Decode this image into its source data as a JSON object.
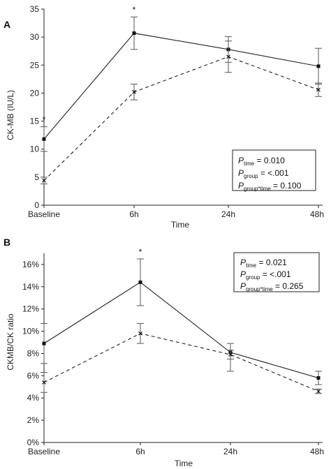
{
  "chart_data": [
    {
      "type": "line",
      "panel": "A",
      "xlabel": "Time",
      "ylabel": "CK-MB (IU/L)",
      "categories": [
        "Baseline",
        "6h",
        "24h",
        "48h"
      ],
      "ylim": [
        0,
        35
      ],
      "yticks": [
        {
          "v": 0,
          "label": "0"
        },
        {
          "v": 5,
          "label": "5"
        },
        {
          "v": 10,
          "label": "10"
        },
        {
          "v": 15,
          "label": "15"
        },
        {
          "v": 20,
          "label": "20"
        },
        {
          "v": 25,
          "label": "25"
        },
        {
          "v": 30,
          "label": "30"
        },
        {
          "v": 35,
          "label": "35"
        }
      ],
      "series": [
        {
          "style": "solid",
          "marker": "square",
          "values": [
            11.8,
            30.7,
            27.8,
            24.8
          ],
          "errors": [
            [
              9.6,
              14.0
            ],
            [
              27.8,
              33.6
            ],
            [
              25.5,
              30.1
            ],
            [
              21.6,
              28.0
            ]
          ]
        },
        {
          "style": "dashed",
          "marker": "x",
          "values": [
            4.4,
            20.2,
            26.5,
            20.6
          ],
          "errors": [
            [
              3.8,
              5.0
            ],
            [
              18.8,
              21.6
            ],
            [
              23.7,
              29.3
            ],
            [
              19.4,
              21.8
            ]
          ]
        }
      ],
      "significance": [
        {
          "index": 0,
          "label": "*"
        },
        {
          "index": 1,
          "label": "*"
        }
      ],
      "stats": [
        {
          "symbol": "P",
          "sub": "time",
          "text": " = 0.010"
        },
        {
          "symbol": "P",
          "sub": "group",
          "text": " = <.001"
        },
        {
          "symbol": "P",
          "sub": "group*time",
          "text": " = 0.100"
        }
      ]
    },
    {
      "type": "line",
      "panel": "B",
      "xlabel": "Time",
      "ylabel": "CKMB/CK ratio",
      "categories": [
        "Baseline",
        "6h",
        "24h",
        "48h"
      ],
      "ylim": [
        0,
        17
      ],
      "yticks": [
        {
          "v": 0,
          "label": "0%"
        },
        {
          "v": 2,
          "label": "2%"
        },
        {
          "v": 4,
          "label": "4%"
        },
        {
          "v": 6,
          "label": "6%"
        },
        {
          "v": 8,
          "label": "8%"
        },
        {
          "v": 10,
          "label": "10%"
        },
        {
          "v": 12,
          "label": "12%"
        },
        {
          "v": 14,
          "label": "14%"
        },
        {
          "v": 16,
          "label": "16%"
        }
      ],
      "series": [
        {
          "style": "solid",
          "marker": "square",
          "values": [
            8.9,
            14.4,
            8.1,
            5.8
          ],
          "errors": [
            [
              7.1,
              10.7
            ],
            [
              12.3,
              16.5
            ],
            [
              6.4,
              8.9
            ],
            [
              5.2,
              6.4
            ]
          ]
        },
        {
          "style": "dashed",
          "marker": "x",
          "values": [
            5.4,
            9.8,
            7.9,
            4.6
          ],
          "errors": [
            [
              4.5,
              6.3
            ],
            [
              8.9,
              10.7
            ],
            [
              7.5,
              8.3
            ],
            [
              4.4,
              4.8
            ]
          ]
        }
      ],
      "significance": [
        {
          "index": 1,
          "label": "*"
        }
      ],
      "stats": [
        {
          "symbol": "P",
          "sub": "time",
          "text": " = 0.021"
        },
        {
          "symbol": "P",
          "sub": "group",
          "text": " = <.001"
        },
        {
          "symbol": "P",
          "sub": "group*time",
          "text": " = 0.265"
        }
      ]
    }
  ]
}
